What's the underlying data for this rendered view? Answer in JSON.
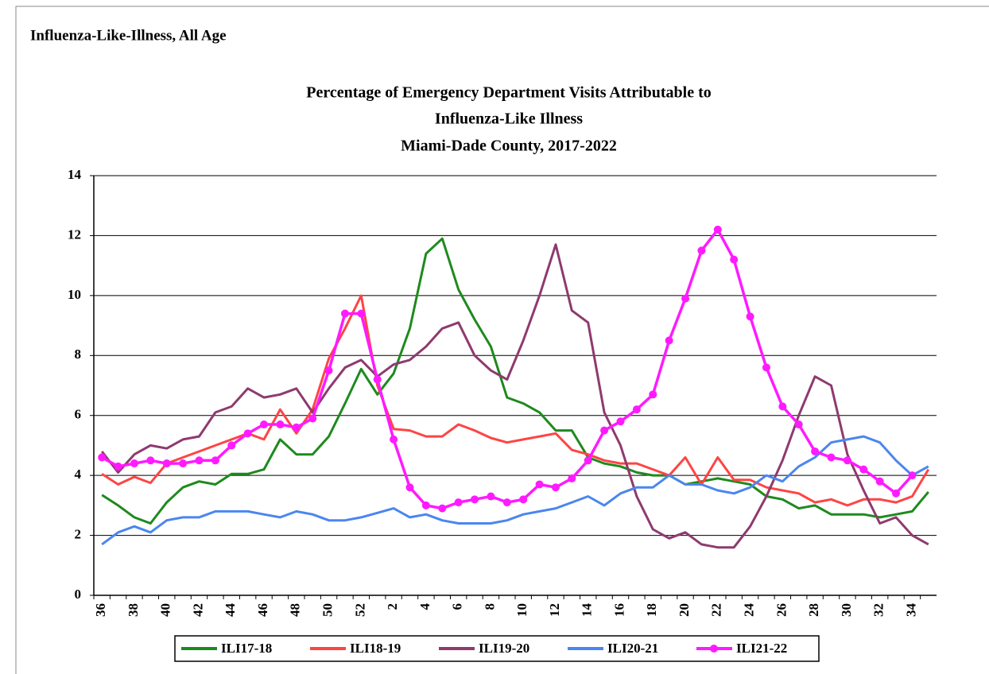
{
  "header": "Influenza-Like-Illness, All Age",
  "chart_data": {
    "type": "line",
    "title": [
      "Percentage of Emergency Department Visits Attributable to",
      "Influenza-Like Illness",
      "Miami-Dade County, 2017-2022"
    ],
    "categories": [
      "36",
      null,
      "38",
      null,
      "40",
      null,
      "42",
      null,
      "44",
      null,
      "46",
      null,
      "48",
      null,
      "50",
      null,
      "52",
      null,
      "2",
      null,
      "4",
      null,
      "6",
      null,
      "8",
      null,
      "10",
      null,
      "12",
      null,
      "14",
      null,
      "16",
      null,
      "18",
      null,
      "20",
      null,
      "22",
      null,
      "24",
      null,
      "26",
      null,
      "28",
      null,
      "30",
      null,
      "32",
      null,
      "34",
      null
    ],
    "ylim": [
      0,
      14
    ],
    "yticks": [
      0,
      2,
      4,
      6,
      8,
      10,
      12,
      14
    ],
    "grid": true,
    "legend": "bottom",
    "series": [
      {
        "name": "ILI17-18",
        "color": "#1e8a1e",
        "values": [
          3.35,
          3.0,
          2.6,
          2.4,
          3.1,
          3.6,
          3.8,
          3.7,
          4.05,
          4.05,
          4.2,
          5.2,
          4.7,
          4.7,
          5.3,
          6.4,
          7.55,
          6.7,
          7.4,
          8.9,
          11.4,
          11.9,
          10.2,
          9.2,
          8.3,
          6.6,
          6.4,
          6.1,
          5.5,
          5.5,
          4.6,
          4.4,
          4.3,
          4.1,
          4.0,
          4.0,
          3.7,
          3.8,
          3.9,
          3.8,
          3.7,
          3.3,
          3.2,
          2.9,
          3.0,
          2.7,
          2.7,
          2.7,
          2.6,
          2.7,
          2.8,
          3.45
        ]
      },
      {
        "name": "ILI18-19",
        "color": "#ff4444",
        "values": [
          4.05,
          3.7,
          3.95,
          3.75,
          4.4,
          4.6,
          4.8,
          5.0,
          5.2,
          5.4,
          5.2,
          6.2,
          5.4,
          6.2,
          7.9,
          8.9,
          10.0,
          7.0,
          5.55,
          5.5,
          5.3,
          5.3,
          5.7,
          5.5,
          5.25,
          5.1,
          5.2,
          5.3,
          5.4,
          4.85,
          4.7,
          4.5,
          4.4,
          4.4,
          4.2,
          4.0,
          4.6,
          3.7,
          4.6,
          3.85,
          3.85,
          3.6,
          3.5,
          3.4,
          3.1,
          3.2,
          3.0,
          3.2,
          3.2,
          3.1,
          3.3,
          4.2
        ]
      },
      {
        "name": "ILI19-20",
        "color": "#8e3a6e",
        "values": [
          4.8,
          4.1,
          4.7,
          5.0,
          4.9,
          5.2,
          5.3,
          6.1,
          6.3,
          6.9,
          6.6,
          6.7,
          6.9,
          6.1,
          6.9,
          7.6,
          7.85,
          7.3,
          7.7,
          7.85,
          8.3,
          8.9,
          9.1,
          8.0,
          7.5,
          7.2,
          8.5,
          10.0,
          11.7,
          9.5,
          9.1,
          6.1,
          5.0,
          3.3,
          2.2,
          1.9,
          2.1,
          1.7,
          1.6,
          1.6,
          2.3,
          3.3,
          4.5,
          6.0,
          7.3,
          7.0,
          4.7,
          3.5,
          2.4,
          2.6,
          2.0,
          1.7
        ]
      },
      {
        "name": "ILI20-21",
        "color": "#4a86f0",
        "values": [
          1.7,
          2.1,
          2.3,
          2.1,
          2.5,
          2.6,
          2.6,
          2.8,
          2.8,
          2.8,
          2.7,
          2.6,
          2.8,
          2.7,
          2.5,
          2.5,
          2.6,
          2.75,
          2.9,
          2.6,
          2.7,
          2.5,
          2.4,
          2.4,
          2.4,
          2.5,
          2.7,
          2.8,
          2.9,
          3.1,
          3.3,
          3.0,
          3.4,
          3.6,
          3.6,
          4.0,
          3.7,
          3.7,
          3.5,
          3.4,
          3.6,
          4.0,
          3.8,
          4.3,
          4.6,
          5.1,
          5.2,
          5.3,
          5.1,
          4.5,
          4.0,
          4.3
        ]
      },
      {
        "name": "ILI21-22",
        "color": "#ff1aff",
        "marker": "circle",
        "values": [
          4.6,
          4.3,
          4.4,
          4.5,
          4.4,
          4.4,
          4.5,
          4.5,
          5.0,
          5.4,
          5.7,
          5.7,
          5.6,
          5.9,
          7.5,
          9.4,
          9.4,
          7.2,
          5.2,
          3.6,
          3.0,
          2.9,
          3.1,
          3.2,
          3.3,
          3.1,
          3.2,
          3.7,
          3.6,
          3.9,
          4.5,
          5.5,
          5.8,
          6.2,
          6.7,
          8.5,
          9.9,
          11.5,
          12.2,
          11.2,
          9.3,
          7.6,
          6.3,
          5.7,
          4.8,
          4.6,
          4.5,
          4.2,
          3.8,
          3.4,
          4.0,
          null
        ]
      }
    ]
  }
}
